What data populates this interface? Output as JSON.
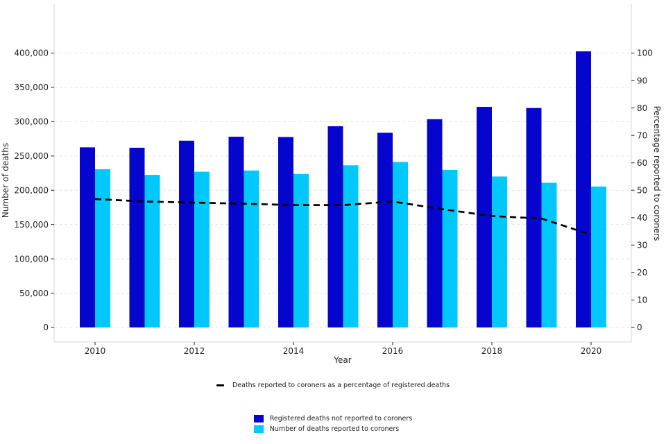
{
  "chart_data": {
    "type": "bar",
    "x": [
      2010,
      2011,
      2012,
      2013,
      2014,
      2015,
      2016,
      2017,
      2018,
      2019,
      2020
    ],
    "series": [
      {
        "name": "Registered deaths not reported to coroners",
        "color": "#0505cd",
        "axis": "left",
        "values": [
          262600,
          262000,
          272300,
          278000,
          277600,
          293300,
          283800,
          303600,
          321600,
          319900,
          402500
        ]
      },
      {
        "name": "Number of deaths reported to coroners",
        "color": "#00c8fa",
        "axis": "left",
        "values": [
          230600,
          222400,
          227000,
          228800,
          223800,
          236400,
          241200,
          229700,
          220000,
          210900,
          205400
        ]
      }
    ],
    "line_series": {
      "name": "Deaths reported to coroners as a percentage of registered deaths",
      "color": "#000000",
      "style": "dashed",
      "axis": "right",
      "values": [
        46.8,
        45.9,
        45.5,
        45.1,
        44.6,
        44.6,
        45.9,
        43.1,
        40.6,
        39.7,
        33.8
      ]
    },
    "xlabel": "Year",
    "ylabel_left": "Number of deaths",
    "ylabel_right": "Percentage reported to coroners",
    "ylim_left": [
      0,
      400000
    ],
    "ylim_right": [
      0,
      100
    ],
    "yticks_left": [
      0,
      50000,
      100000,
      150000,
      200000,
      250000,
      300000,
      350000,
      400000
    ],
    "yticks_right": [
      0,
      10,
      20,
      30,
      40,
      50,
      60,
      70,
      80,
      90,
      100
    ],
    "xticks": [
      2010,
      2012,
      2014,
      2016,
      2018,
      2020
    ],
    "grid": "horizontal-dashed",
    "legend_position": "bottom"
  }
}
